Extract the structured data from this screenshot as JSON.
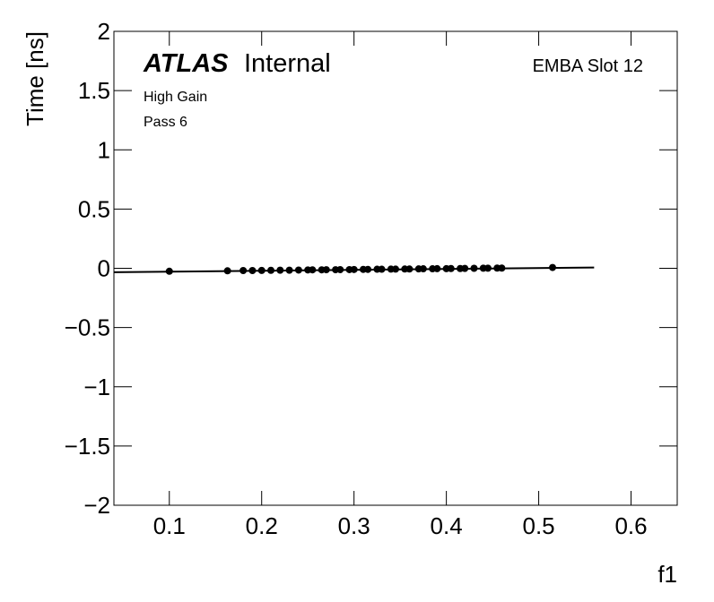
{
  "chart_data": {
    "type": "scatter",
    "atlas_label": "ATLAS",
    "atlas_status": "Internal",
    "annotations": [
      "EMBA Slot 12",
      "High Gain",
      "Pass 6"
    ],
    "xlabel": "f1",
    "ylabel": "Time [ns]",
    "xlim": [
      0.04,
      0.65
    ],
    "ylim": [
      -2,
      2
    ],
    "xticks": [
      0.1,
      0.2,
      0.3,
      0.4,
      0.5,
      0.6
    ],
    "yticks": [
      {
        "value": -2,
        "label": "−2"
      },
      {
        "value": -1.5,
        "label": "−1.5"
      },
      {
        "value": -1,
        "label": "−1"
      },
      {
        "value": -0.5,
        "label": "−0.5"
      },
      0,
      0.5,
      1,
      1.5,
      2
    ],
    "color": "#000000",
    "x": [
      0.1,
      0.163,
      0.18,
      0.19,
      0.2,
      0.21,
      0.22,
      0.23,
      0.24,
      0.25,
      0.255,
      0.265,
      0.27,
      0.28,
      0.285,
      0.295,
      0.3,
      0.31,
      0.315,
      0.325,
      0.33,
      0.34,
      0.345,
      0.355,
      0.36,
      0.37,
      0.375,
      0.385,
      0.39,
      0.4,
      0.405,
      0.415,
      0.42,
      0.43,
      0.44,
      0.445,
      0.455,
      0.46,
      0.515
    ],
    "values": [
      -0.025,
      -0.021,
      -0.019,
      -0.019,
      -0.018,
      -0.017,
      -0.016,
      -0.016,
      -0.015,
      -0.014,
      -0.013,
      -0.013,
      -0.012,
      -0.012,
      -0.011,
      -0.011,
      -0.01,
      -0.009,
      -0.009,
      -0.008,
      -0.008,
      -0.007,
      -0.007,
      -0.006,
      -0.006,
      -0.005,
      -0.004,
      -0.004,
      -0.003,
      -0.003,
      -0.002,
      -0.002,
      -0.001,
      0.0,
      0.001,
      0.001,
      0.002,
      0.002,
      0.007
    ],
    "fit": {
      "x": [
        0.04,
        0.56
      ],
      "y": [
        -0.033,
        0.007
      ]
    }
  }
}
